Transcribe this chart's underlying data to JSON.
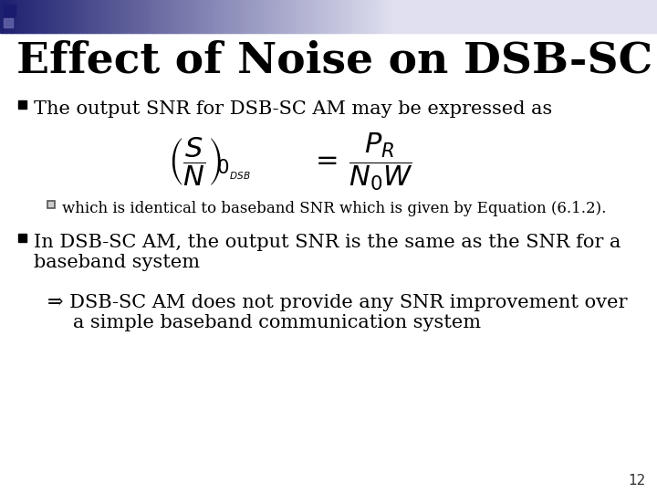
{
  "title": "Effect of Noise on DSB-SC AM",
  "title_fontsize": 34,
  "title_color": "#000000",
  "background_color": "#ffffff",
  "slide_number": "12",
  "bullet1": "The output SNR for DSB-SC AM may be expressed as",
  "bullet1_fontsize": 15,
  "sub_bullet1": "which is identical to baseband SNR which is given by Equation (6.1.2).",
  "sub_bullet1_fontsize": 12,
  "bullet2_line1": "In DSB-SC AM, the output SNR is the same as the SNR for a",
  "bullet2_line2": "baseband system",
  "bullet2_fontsize": 15,
  "arrow_line1": "⇒ DSB-SC AM does not provide any SNR improvement over",
  "arrow_line2": "a simple baseband communication system",
  "arrow_fontsize": 15,
  "text_color": "#000080",
  "header_grad_left": "#1e2070",
  "header_grad_right": "#e0e0f0"
}
